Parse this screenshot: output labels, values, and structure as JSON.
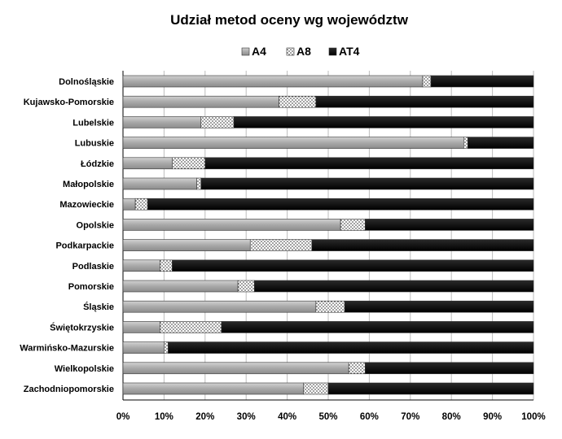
{
  "chart_data": {
    "type": "bar",
    "orientation": "horizontal",
    "stacked": "percent",
    "title": "Udział metod oceny wg województw",
    "xlabel": "",
    "ylabel": "",
    "xlim": [
      0,
      100
    ],
    "x_ticks": [
      "0%",
      "10%",
      "20%",
      "30%",
      "40%",
      "50%",
      "60%",
      "70%",
      "80%",
      "90%",
      "100%"
    ],
    "grid": true,
    "legend_position": "top",
    "categories": [
      "Dolnośląskie",
      "Kujawsko-Pomorskie",
      "Lubelskie",
      "Lubuskie",
      "Łódzkie",
      "Małopolskie",
      "Mazowieckie",
      "Opolskie",
      "Podkarpackie",
      "Podlaskie",
      "Pomorskie",
      "Śląskie",
      "Świętokrzyskie",
      "Warmińsko-Mazurskie",
      "Wielkopolskie",
      "Zachodniopomorskie"
    ],
    "series": [
      {
        "name": "A4",
        "values": [
          73,
          38,
          19,
          83,
          12,
          18,
          3,
          53,
          31,
          9,
          28,
          47,
          9,
          10,
          55,
          44
        ]
      },
      {
        "name": "A8",
        "values": [
          2,
          9,
          8,
          1,
          8,
          1,
          3,
          6,
          15,
          3,
          4,
          7,
          15,
          1,
          4,
          6
        ]
      },
      {
        "name": "AT4",
        "values": [
          25,
          53,
          73,
          16,
          80,
          81,
          94,
          41,
          54,
          88,
          68,
          46,
          76,
          89,
          41,
          50
        ]
      }
    ]
  }
}
